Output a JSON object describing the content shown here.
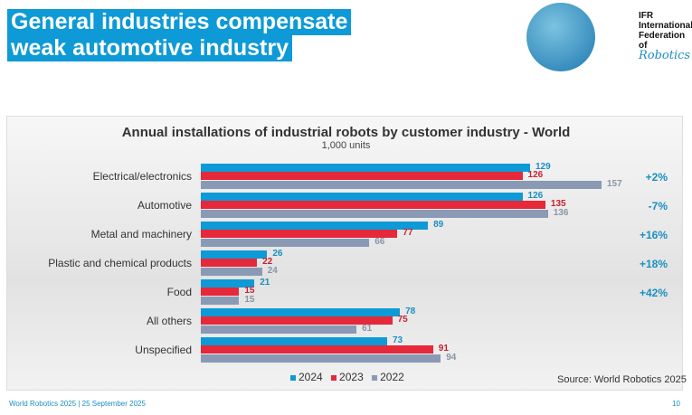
{
  "header": {
    "title_line1": "General industries compensate",
    "title_line2": "weak automotive industry",
    "logo_text": "IFR International Federation of Robotics"
  },
  "chart_data": {
    "type": "bar",
    "orientation": "horizontal",
    "title": "Annual installations of industrial robots by customer industry - World",
    "subtitle": "1,000 units",
    "categories": [
      "Electrical/electronics",
      "Automotive",
      "Metal and machinery",
      "Plastic and chemical products",
      "Food",
      "All others",
      "Unspecified"
    ],
    "series": [
      {
        "name": "2024",
        "color": "#0e9ad6",
        "values": [
          129,
          126,
          89,
          26,
          21,
          78,
          73
        ]
      },
      {
        "name": "2023",
        "color": "#e5283a",
        "values": [
          126,
          135,
          77,
          22,
          15,
          75,
          91
        ]
      },
      {
        "name": "2022",
        "color": "#8a9ab4",
        "values": [
          157,
          136,
          66,
          24,
          15,
          61,
          94
        ]
      }
    ],
    "growth": [
      "+2%",
      "-7%",
      "+16%",
      "+18%",
      "+42%",
      "",
      ""
    ],
    "xlim": [
      0,
      157
    ],
    "legend": "bottom",
    "grid": false,
    "source": "Source: World Robotics 2025"
  },
  "footer": {
    "text": "World Robotics 2025  | 25 September 2025",
    "page": "10"
  }
}
